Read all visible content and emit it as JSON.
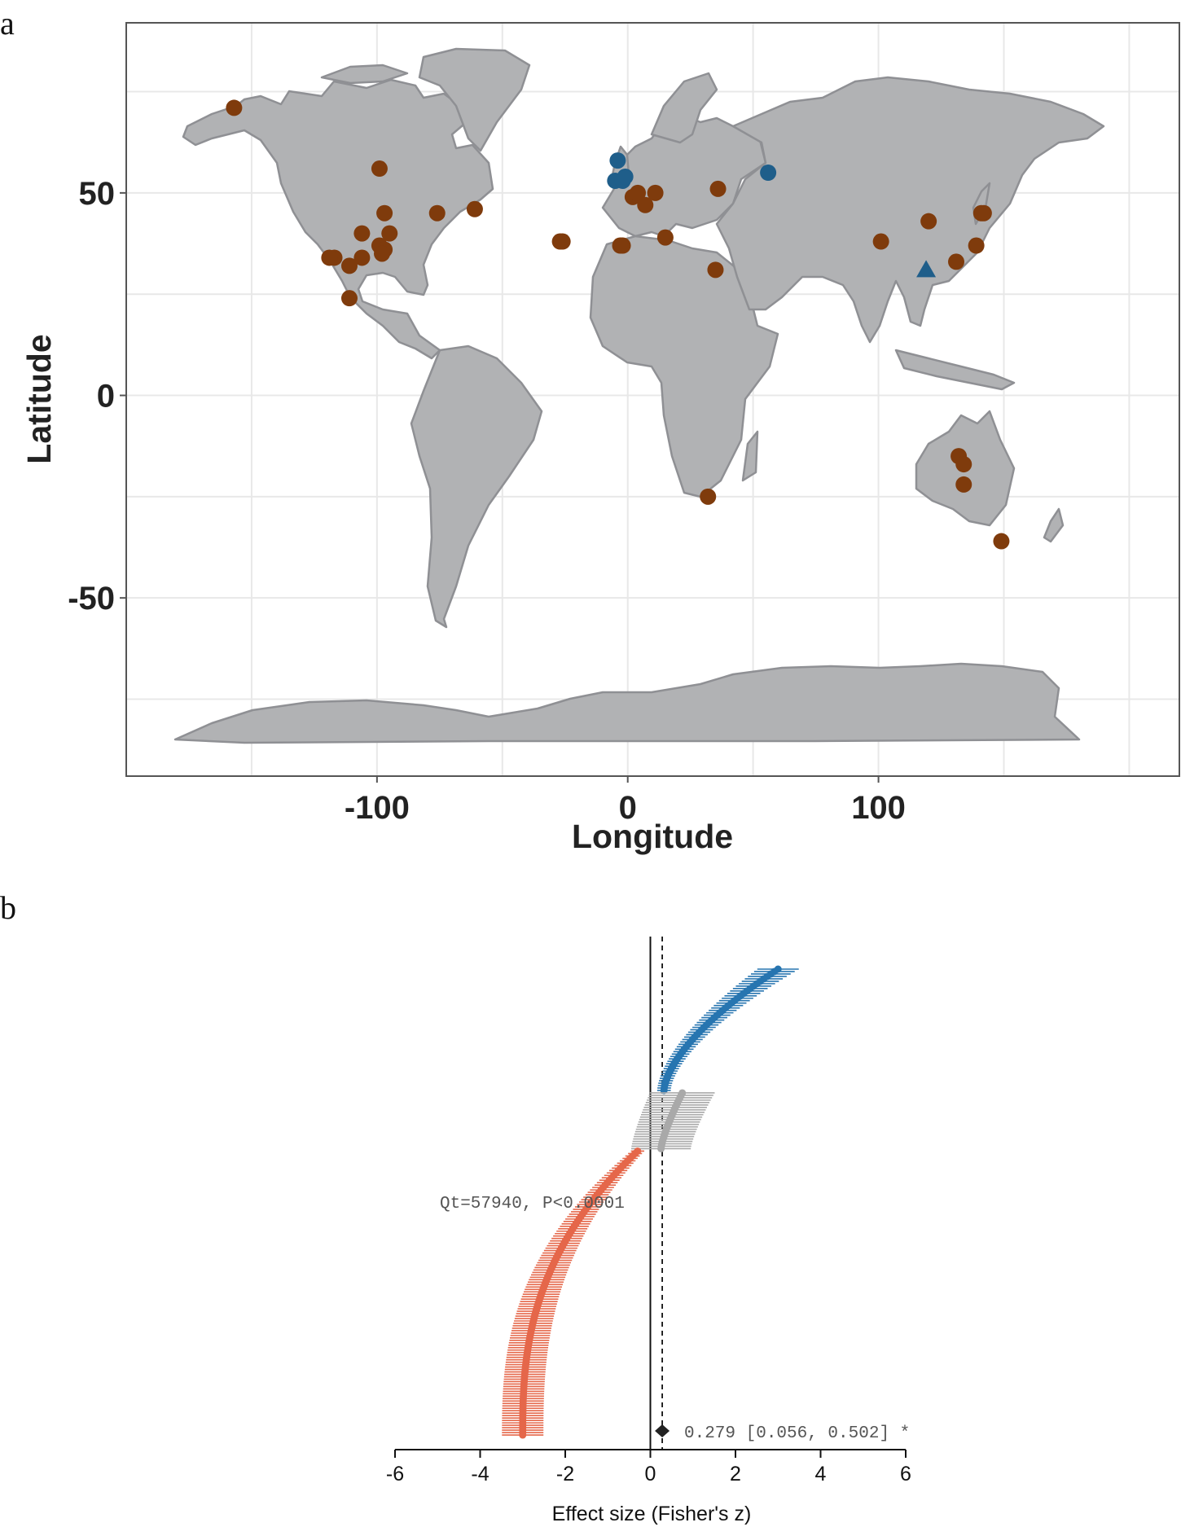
{
  "panel_labels": {
    "a": "a",
    "b": "b"
  },
  "colors": {
    "land": "#b1b2b4",
    "border": "#8f9094",
    "grid": "#e8e8e8",
    "brown": "#7f3b0c",
    "blue": "#1f5e8a",
    "forest_blue": "#2775b0",
    "forest_red": "#e5674a",
    "forest_grey": "#a9a9a9"
  },
  "chart_data": [
    {
      "type": "scatter",
      "xlabel": "Longitude",
      "ylabel": "Latitude",
      "xlim": [
        -200,
        220
      ],
      "ylim": [
        -94,
        92
      ],
      "xticks": [
        -100,
        0,
        100
      ],
      "yticks": [
        -50,
        0,
        50
      ],
      "grid": true,
      "background": "world map",
      "series": [
        {
          "marker": "circle",
          "color": "brown",
          "points": [
            [
              -157,
              71
            ],
            [
              -99,
              56
            ],
            [
              -97,
              45
            ],
            [
              -106,
              40
            ],
            [
              -95,
              40
            ],
            [
              -99,
              37
            ],
            [
              -97,
              36
            ],
            [
              -98,
              35
            ],
            [
              -106,
              34
            ],
            [
              -117,
              34
            ],
            [
              -119,
              34
            ],
            [
              -111,
              32
            ],
            [
              -111,
              24
            ],
            [
              -76,
              45
            ],
            [
              -61,
              46
            ],
            [
              -27,
              38
            ],
            [
              -26,
              38
            ],
            [
              -3,
              37
            ],
            [
              -2,
              37
            ],
            [
              2,
              49
            ],
            [
              4,
              50
            ],
            [
              7,
              47
            ],
            [
              11,
              50
            ],
            [
              15,
              39
            ],
            [
              36,
              51
            ],
            [
              35,
              31
            ],
            [
              32,
              -25
            ],
            [
              101,
              38
            ],
            [
              120,
              43
            ],
            [
              131,
              33
            ],
            [
              139,
              37
            ],
            [
              142,
              45
            ],
            [
              141,
              45
            ],
            [
              132,
              -15
            ],
            [
              134,
              -17
            ],
            [
              134,
              -22
            ],
            [
              149,
              -36
            ]
          ]
        },
        {
          "marker": "circle",
          "color": "blue",
          "points": [
            [
              -4,
              58
            ],
            [
              -5,
              53
            ],
            [
              -2,
              53
            ],
            [
              -1,
              54
            ],
            [
              56,
              55
            ]
          ]
        },
        {
          "marker": "triangle",
          "color": "blue",
          "points": [
            [
              119,
              31
            ]
          ]
        }
      ]
    },
    {
      "type": "forest",
      "xlabel": "Effect size (Fisher's z)",
      "xlim": [
        -6,
        6
      ],
      "xticks": [
        -6,
        -4,
        -2,
        0,
        2,
        4,
        6
      ],
      "pooled": {
        "estimate": 0.279,
        "ci": [
          0.056,
          0.502
        ],
        "label": "0.279 [0.056, 0.502] *"
      },
      "heterogeneity": "Qt=57940, P<0.0001",
      "series": [
        {
          "color": "forest_blue",
          "n": 51,
          "z_start": 3.0,
          "z_end": 0.32,
          "shape": 1.6
        },
        {
          "color": "forest_grey",
          "n": 24,
          "z_start": 0.75,
          "z_end": 0.25,
          "shape": 1.3
        },
        {
          "color": "forest_red",
          "n": 118,
          "z_start": -0.3,
          "z_end": -3.0,
          "shape": 2.6
        }
      ]
    }
  ]
}
